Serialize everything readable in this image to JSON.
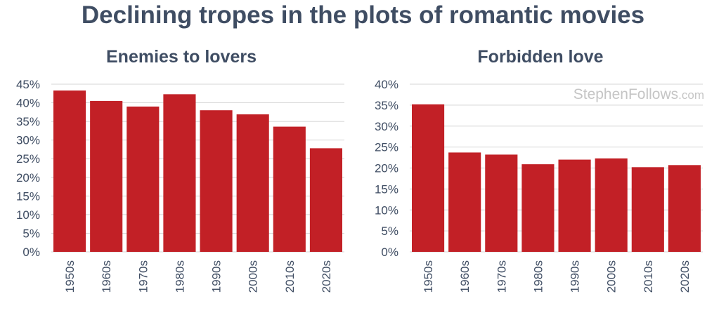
{
  "title": "Declining tropes in the plots of romantic movies",
  "watermark": {
    "main": "StephenFollows",
    "suffix": ".com"
  },
  "colors": {
    "bar": "#c22026",
    "text": "#3f4d63",
    "grid": "#d4d4d4"
  },
  "chart_data": [
    {
      "type": "bar",
      "title": "Enemies to lovers",
      "categories": [
        "1950s",
        "1960s",
        "1970s",
        "1980s",
        "1990s",
        "2000s",
        "2010s",
        "2020s"
      ],
      "values": [
        43.3,
        40.5,
        39.0,
        42.3,
        38.0,
        36.9,
        33.6,
        27.8
      ],
      "ylim": [
        0,
        45
      ],
      "yticks": [
        0,
        5,
        10,
        15,
        20,
        25,
        30,
        35,
        40,
        45
      ],
      "ytick_format": "percent",
      "xlabel": "",
      "ylabel": "",
      "grid": true,
      "legend": "none"
    },
    {
      "type": "bar",
      "title": "Forbidden love",
      "categories": [
        "1950s",
        "1960s",
        "1970s",
        "1980s",
        "1990s",
        "2000s",
        "2010s",
        "2020s"
      ],
      "values": [
        35.2,
        23.7,
        23.2,
        20.9,
        22.0,
        22.3,
        20.2,
        20.7
      ],
      "ylim": [
        0,
        40
      ],
      "yticks": [
        0,
        5,
        10,
        15,
        20,
        25,
        30,
        35,
        40
      ],
      "ytick_format": "percent",
      "xlabel": "",
      "ylabel": "",
      "grid": true,
      "legend": "none"
    }
  ]
}
